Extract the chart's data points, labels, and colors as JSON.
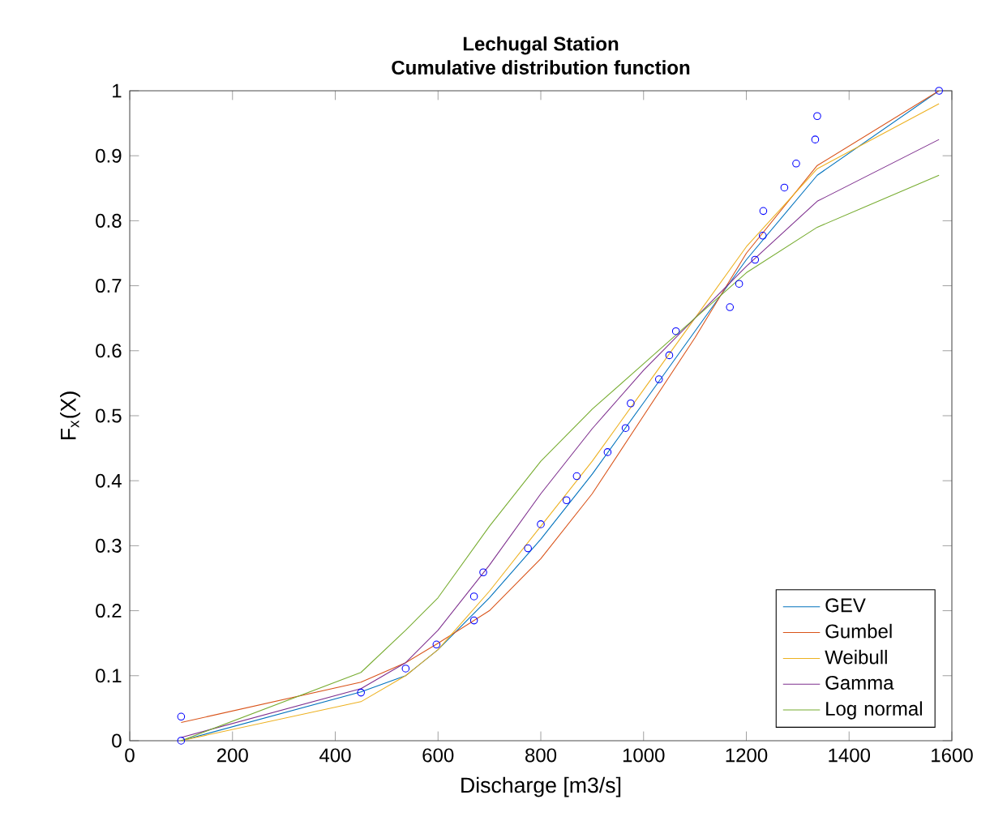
{
  "chart_data": {
    "type": "line",
    "title": "Lechugal Station",
    "subtitle": "Cumulative distribution function",
    "xlabel": "Discharge [m3/s]",
    "ylabel": "F$_{x}$(X)",
    "xlim": [
      0,
      1600
    ],
    "ylim": [
      0,
      1
    ],
    "xticks": [
      0,
      200,
      400,
      600,
      800,
      1000,
      1200,
      1400,
      1600
    ],
    "yticks": [
      0,
      0.1,
      0.2,
      0.3,
      0.4,
      0.5,
      0.6,
      0.7,
      0.8,
      0.9,
      1
    ],
    "grid": false,
    "legend": "bottom right",
    "series": [
      {
        "name": "GEV",
        "color": "#0072bd",
        "x": [
          100,
          450,
          537,
          600,
          700,
          800,
          900,
          1000,
          1100,
          1200,
          1338,
          1575
        ],
        "values": [
          0.0,
          0.075,
          0.1,
          0.14,
          0.22,
          0.31,
          0.41,
          0.52,
          0.63,
          0.74,
          0.87,
          1.0
        ]
      },
      {
        "name": "Gumbel",
        "color": "#d95319",
        "x": [
          100,
          450,
          537,
          600,
          700,
          800,
          900,
          1000,
          1100,
          1200,
          1338,
          1575
        ],
        "values": [
          0.028,
          0.09,
          0.12,
          0.15,
          0.2,
          0.28,
          0.38,
          0.5,
          0.62,
          0.75,
          0.885,
          1.0
        ]
      },
      {
        "name": "Weibull",
        "color": "#edb120",
        "x": [
          100,
          450,
          537,
          600,
          700,
          800,
          900,
          1000,
          1100,
          1200,
          1338,
          1575
        ],
        "values": [
          0.0,
          0.06,
          0.1,
          0.14,
          0.23,
          0.33,
          0.43,
          0.54,
          0.65,
          0.76,
          0.88,
          0.98
        ]
      },
      {
        "name": "Gamma",
        "color": "#7e2f8e",
        "x": [
          100,
          450,
          537,
          600,
          700,
          800,
          900,
          1000,
          1100,
          1200,
          1338,
          1575
        ],
        "values": [
          0.005,
          0.08,
          0.12,
          0.17,
          0.27,
          0.38,
          0.48,
          0.57,
          0.65,
          0.73,
          0.83,
          0.925
        ]
      },
      {
        "name": "Log normal",
        "color": "#77ac30",
        "x": [
          100,
          450,
          537,
          600,
          700,
          800,
          900,
          1000,
          1100,
          1200,
          1338,
          1575
        ],
        "values": [
          0.0,
          0.105,
          0.17,
          0.22,
          0.33,
          0.43,
          0.51,
          0.58,
          0.65,
          0.72,
          0.79,
          0.87
        ]
      },
      {
        "type": "scatter",
        "marker": "circle",
        "color": "#0000ff",
        "x": [
          100,
          100,
          450,
          537,
          597,
          670,
          670,
          688,
          775,
          800,
          850,
          870,
          930,
          965,
          975,
          1030,
          1050,
          1063,
          1168,
          1186,
          1217,
          1232,
          1233,
          1274,
          1297,
          1334,
          1338,
          1575
        ],
        "values": [
          0.0,
          0.037,
          0.074,
          0.111,
          0.148,
          0.185,
          0.222,
          0.259,
          0.296,
          0.333,
          0.37,
          0.407,
          0.444,
          0.481,
          0.519,
          0.556,
          0.593,
          0.63,
          0.667,
          0.703,
          0.74,
          0.777,
          0.815,
          0.851,
          0.888,
          0.925,
          0.961,
          1.0
        ]
      }
    ]
  }
}
